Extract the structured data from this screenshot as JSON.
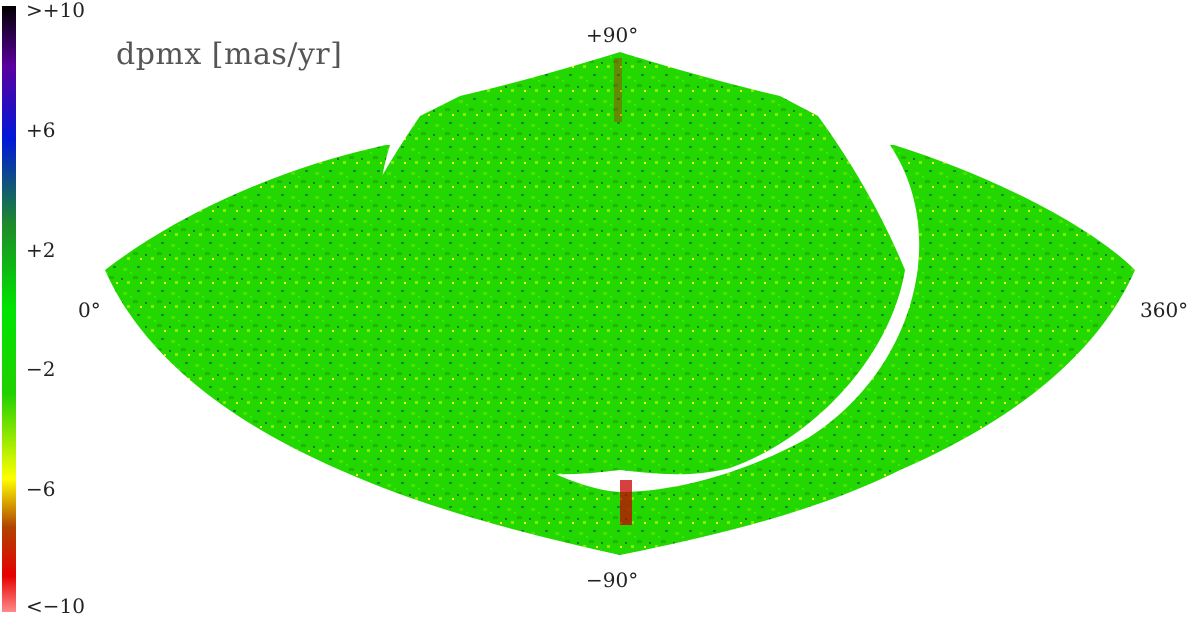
{
  "map": {
    "title": "dpmx [mas/yr]",
    "projection": "sinusoidal (all-sky)",
    "colors": {
      "background": "#ffffff",
      "base_field": "#22d800",
      "hot_yellow": "#ffff00",
      "hot_red": "#d20000",
      "cold_blue": "#1a40e0",
      "cold_darkgreen": "#138a2a"
    }
  },
  "colorbar": {
    "labels": [
      ">+10",
      "+6",
      "+2",
      "−2",
      "−6",
      "<−10"
    ],
    "values": [
      10,
      6,
      2,
      -2,
      -6,
      -10
    ]
  },
  "axes": {
    "top": "+90°",
    "bottom": "−90°",
    "left": "0°",
    "right": "360°"
  }
}
